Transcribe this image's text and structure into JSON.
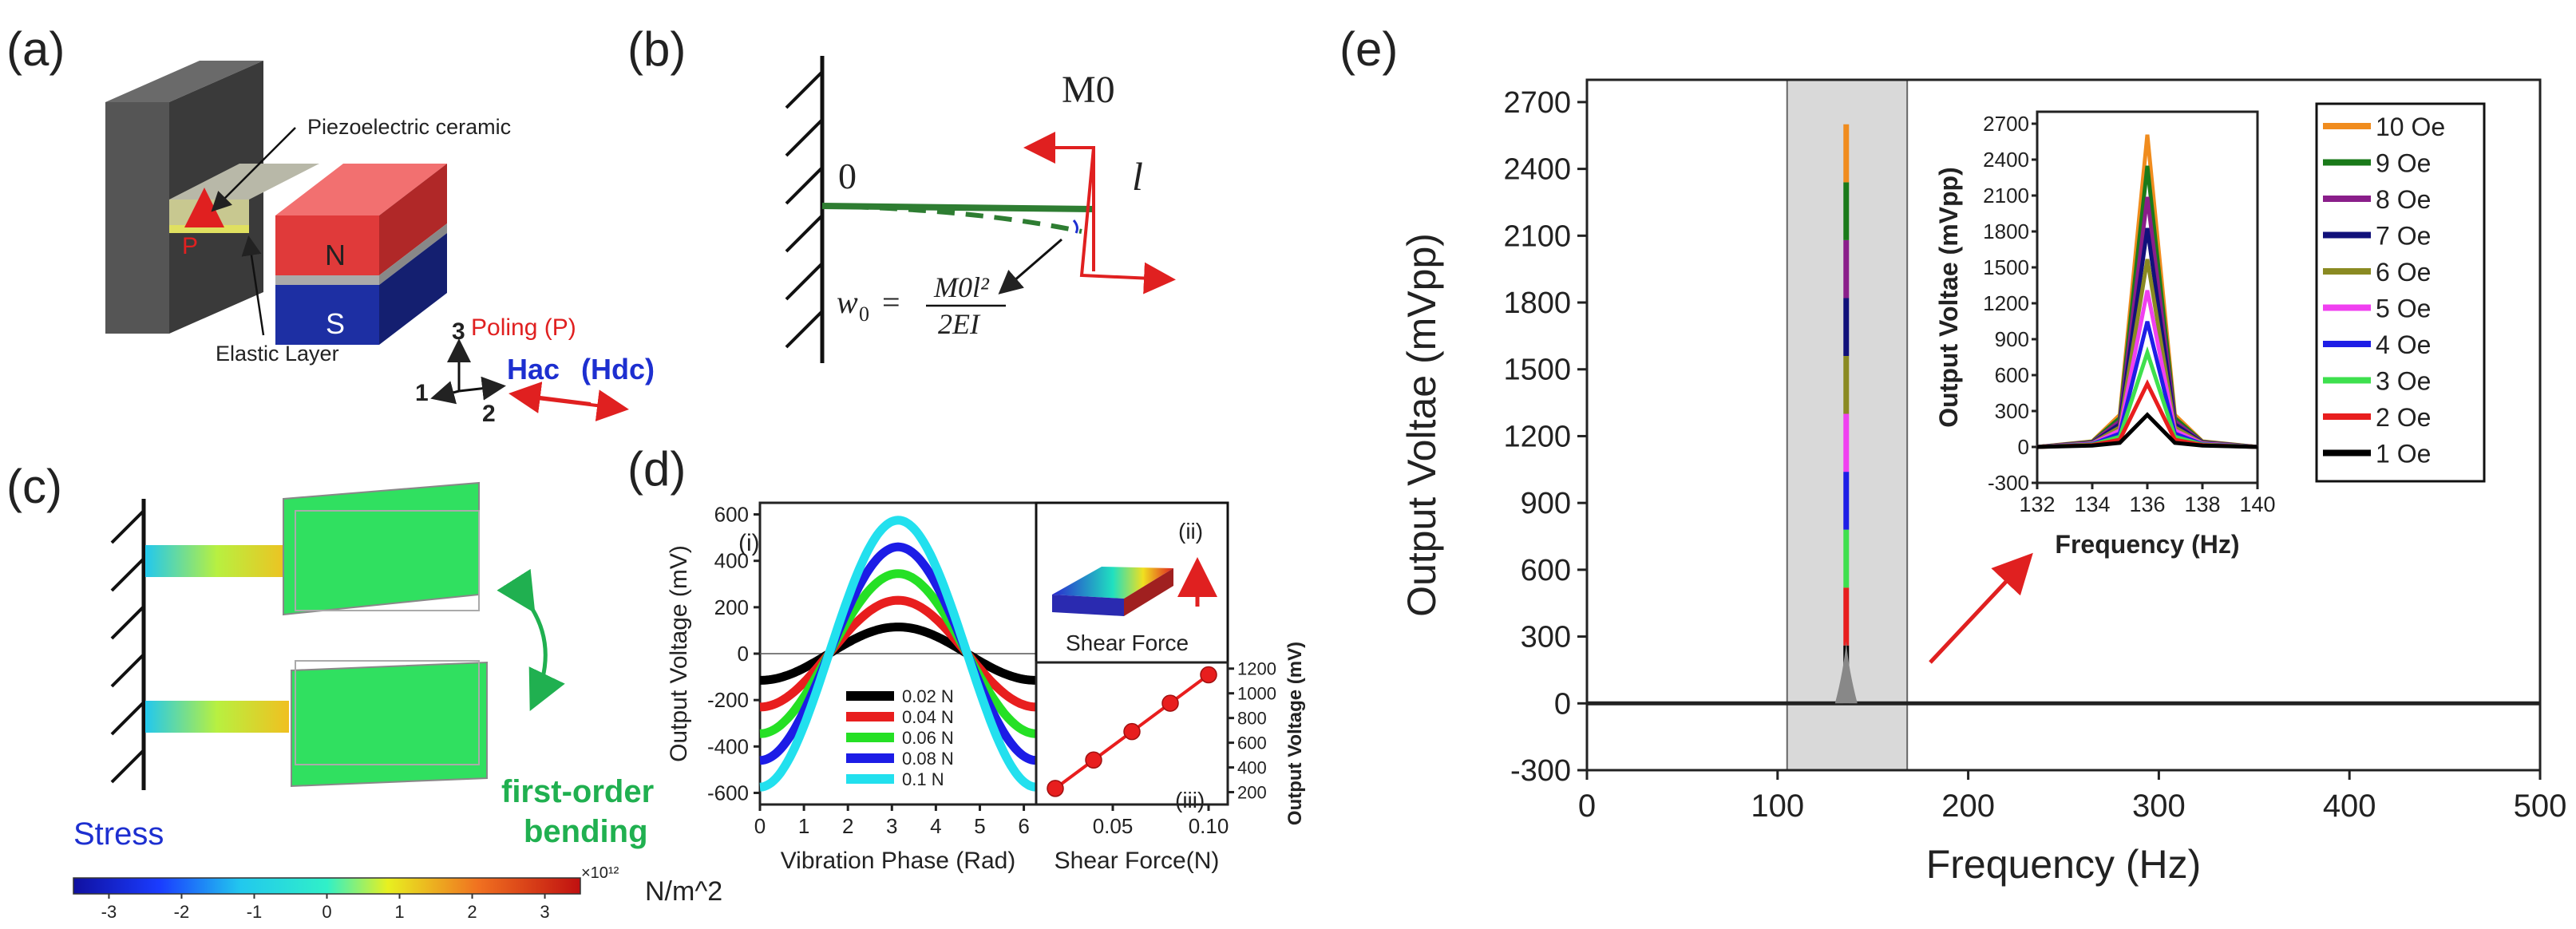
{
  "figure": {
    "panel_labels": [
      "(a)",
      "(b)",
      "(c)",
      "(d)",
      "(e)"
    ]
  },
  "panel_a": {
    "labels": {
      "piezo": "Piezoelectric ceramic",
      "elastic": "Elastic Layer",
      "north": "N",
      "south": "S",
      "poling_arrow": "P",
      "poling": "Poling (P)",
      "hac": "Hac",
      "hdc": "(Hdc)",
      "axis1": "1",
      "axis2": "2",
      "axis3": "3"
    },
    "colors": {
      "magnet_top": "#e03a3a",
      "magnet_bottom": "#1d2fa3",
      "block": "#4a4a4a",
      "poling": "#e02020",
      "hac": "#1d2fd0"
    }
  },
  "panel_b": {
    "labels": {
      "moment": "M0",
      "origin": "0",
      "length": "l",
      "formula_lhs": "w",
      "formula_sub": "0",
      "formula_eq": "=",
      "formula_num": "M0l²",
      "formula_den": "2EI"
    }
  },
  "panel_c": {
    "labels": {
      "stress": "Stress",
      "mode": "first-order",
      "mode2": "bending",
      "unit": "N/m^2",
      "scale": "×10¹²"
    },
    "colorbar_ticks": [
      "-3",
      "-2",
      "-1",
      "0",
      "1",
      "2",
      "3"
    ]
  },
  "panel_d": {
    "sub_labels": {
      "i": "(i)",
      "ii": "(ii)",
      "iii": "(iii)",
      "shear": "Shear Force"
    },
    "colors": {
      "inset_arrow": "#e02020"
    }
  },
  "panel_e": {
    "inset_arrow_color": "#e02020"
  },
  "chart_data": [
    {
      "id": "d_i",
      "type": "line",
      "title": "",
      "xlabel": "Vibration Phase (Rad)",
      "ylabel": "Output Voltage (mV)",
      "xlim": [
        0,
        6.28
      ],
      "ylim": [
        -650,
        650
      ],
      "xticks": [
        0,
        1,
        2,
        3,
        4,
        5,
        6
      ],
      "yticks": [
        -600,
        -400,
        -200,
        0,
        200,
        400,
        600
      ],
      "series": [
        {
          "name": "0.02 N",
          "color": "#000000",
          "amplitude": 115
        },
        {
          "name": "0.04 N",
          "color": "#e81e1e",
          "amplitude": 230
        },
        {
          "name": "0.06 N",
          "color": "#25e025",
          "amplitude": 345
        },
        {
          "name": "0.08 N",
          "color": "#1c1ce6",
          "amplitude": 460
        },
        {
          "name": "0.1 N",
          "color": "#22e0ee",
          "amplitude": 575
        }
      ],
      "legend": "lower-center"
    },
    {
      "id": "d_iii",
      "type": "scatter",
      "xlabel": "Shear Force(N)",
      "ylabel": "Output Voltage (mV)",
      "xlim": [
        0.01,
        0.11
      ],
      "ylim": [
        100,
        1250
      ],
      "xticks": [
        "0.05",
        "0.10"
      ],
      "xtick_values": [
        0.05,
        0.1
      ],
      "yticks": [
        200,
        400,
        600,
        800,
        1000,
        1200
      ],
      "x": [
        0.02,
        0.04,
        0.06,
        0.08,
        0.1
      ],
      "y": [
        230,
        460,
        690,
        920,
        1150
      ],
      "color": "#e81e1e"
    },
    {
      "id": "e_main",
      "type": "line",
      "xlabel": "Frequency (Hz)",
      "ylabel": "Output Voltae (mVpp)",
      "xlim": [
        0,
        500
      ],
      "ylim": [
        -300,
        2800
      ],
      "xticks": [
        0,
        100,
        200,
        300,
        400,
        500
      ],
      "yticks": [
        -300,
        0,
        300,
        600,
        900,
        1200,
        1500,
        1800,
        2100,
        2400,
        2700
      ],
      "highlight_range": [
        105,
        168
      ],
      "peak_x": 136,
      "peaks": [
        260,
        520,
        780,
        1040,
        1300,
        1560,
        1820,
        2080,
        2340,
        2600
      ]
    },
    {
      "id": "e_inset",
      "type": "line",
      "xlabel": "Frequency (Hz)",
      "ylabel": "Output Voltae (mVpp)",
      "xlim": [
        132,
        140
      ],
      "ylim": [
        -300,
        2800
      ],
      "xticks": [
        132,
        134,
        136,
        138,
        140
      ],
      "yticks": [
        -300,
        0,
        300,
        600,
        900,
        1200,
        1500,
        1800,
        2100,
        2400,
        2700
      ],
      "x": [
        132,
        134,
        135,
        136,
        137,
        138,
        140
      ],
      "series": [
        {
          "name": "1 Oe",
          "color": "#000000",
          "peak": 260
        },
        {
          "name": "2 Oe",
          "color": "#e81e1e",
          "peak": 520
        },
        {
          "name": "3 Oe",
          "color": "#3ee04e",
          "peak": 780
        },
        {
          "name": "4 Oe",
          "color": "#1e1ee6",
          "peak": 1040
        },
        {
          "name": "5 Oe",
          "color": "#f040f0",
          "peak": 1300
        },
        {
          "name": "6 Oe",
          "color": "#8a8a22",
          "peak": 1560
        },
        {
          "name": "7 Oe",
          "color": "#11117a",
          "peak": 1820
        },
        {
          "name": "8 Oe",
          "color": "#8a1e8a",
          "peak": 2080
        },
        {
          "name": "9 Oe",
          "color": "#1a7a1a",
          "peak": 2340
        },
        {
          "name": "10 Oe",
          "color": "#f08c1e",
          "peak": 2600
        }
      ],
      "legend": "right"
    }
  ]
}
